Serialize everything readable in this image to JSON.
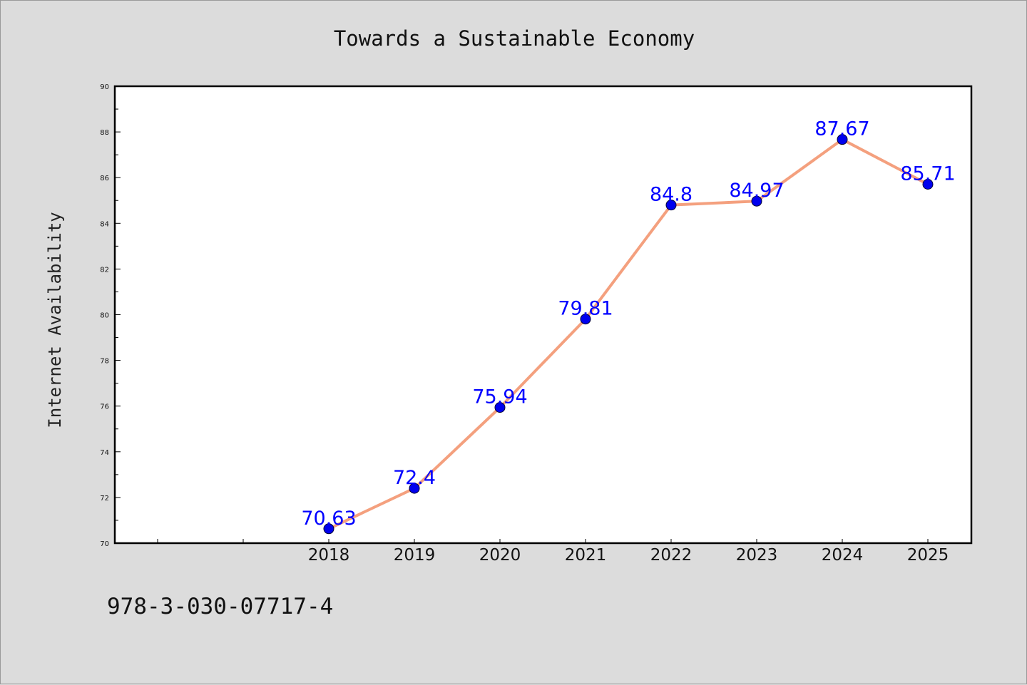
{
  "chart_data": {
    "type": "line",
    "title": "Towards a Sustainable Economy",
    "xlabel": "",
    "ylabel": "Internet Availability",
    "categories": [
      "2018",
      "2019",
      "2020",
      "2021",
      "2022",
      "2023",
      "2024",
      "2025"
    ],
    "series": [
      {
        "values": [
          70.63,
          72.4,
          75.94,
          79.81,
          84.8,
          84.97,
          87.67,
          85.71
        ],
        "labels": [
          "70.63",
          "72.4",
          "75.94",
          "79.81",
          "84.8",
          "84.97",
          "87.67",
          "85.71"
        ]
      }
    ],
    "ylim": [
      70,
      90
    ],
    "yticks": [
      "70",
      "72",
      "74",
      "76",
      "78",
      "80",
      "82",
      "84",
      "86",
      "88",
      "90"
    ],
    "grid": false,
    "legend": "none",
    "line_color": "#f4a07e",
    "marker_color": "#0000ee",
    "label_color": "#0000ff"
  },
  "footer": {
    "code": "978-3-030-07717-4"
  }
}
